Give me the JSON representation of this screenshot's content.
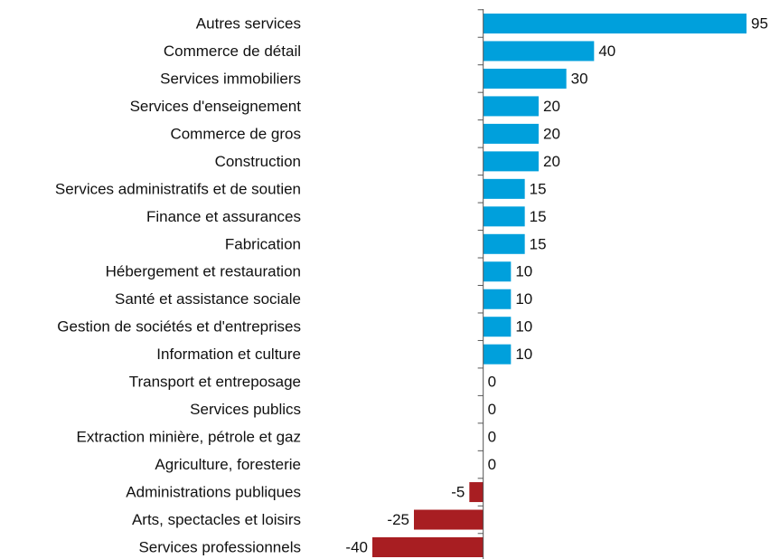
{
  "chart_data": {
    "type": "bar",
    "orientation": "horizontal",
    "categories": [
      "Autres services",
      "Commerce de détail",
      "Services immobiliers",
      "Services d'enseignement",
      "Commerce de gros",
      "Construction",
      "Services administratifs et de soutien",
      "Finance et assurances",
      "Fabrication",
      "Hébergement et restauration",
      "Santé et assistance sociale",
      "Gestion de sociétés et d'entreprises",
      "Information et culture",
      "Transport et entreposage",
      "Services publics",
      "Extraction minière, pétrole et gaz",
      "Agriculture, foresterie",
      "Administrations publiques",
      "Arts, spectacles et loisirs",
      "Services professionnels"
    ],
    "values": [
      95,
      40,
      30,
      20,
      20,
      20,
      15,
      15,
      15,
      10,
      10,
      10,
      10,
      0,
      0,
      0,
      0,
      -5,
      -25,
      -40
    ],
    "positive_color": "#00a0dc",
    "negative_color": "#a81e22",
    "grid": false
  }
}
